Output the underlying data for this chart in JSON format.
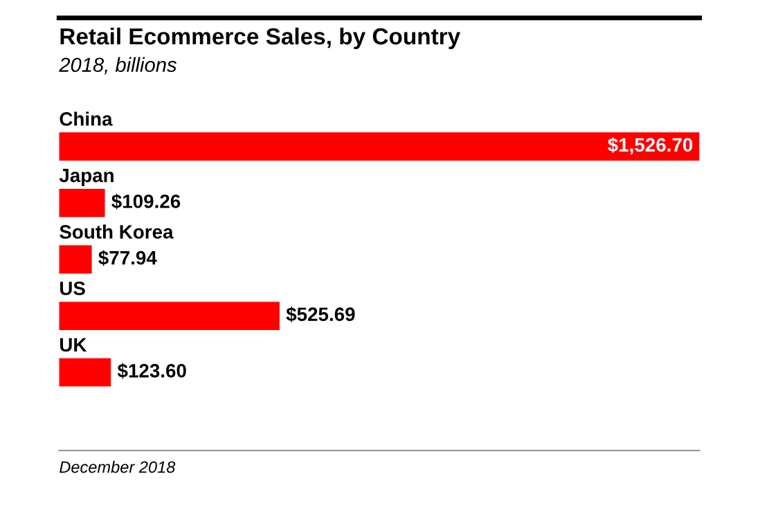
{
  "chart_data": {
    "type": "bar",
    "orientation": "horizontal",
    "title": "Retail Ecommerce Sales, by Country",
    "subtitle": "2018, billions",
    "categories": [
      "China",
      "Japan",
      "South Korea",
      "US",
      "UK"
    ],
    "values": [
      1526.7,
      109.26,
      77.94,
      525.69,
      123.6
    ],
    "value_labels": [
      "$1,526.70",
      "$109.26",
      "$77.94",
      "$525.69",
      "$123.60"
    ],
    "color": "#ff0000",
    "annotations": [
      "December 2018"
    ]
  }
}
